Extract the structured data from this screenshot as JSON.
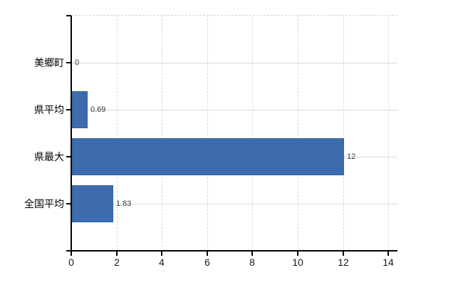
{
  "chart_data": {
    "type": "bar",
    "orientation": "horizontal",
    "title": "",
    "xlabel": "",
    "ylabel": "",
    "legend": null,
    "grid": true,
    "categories": [
      "美郷町",
      "県平均",
      "県最大",
      "全国平均"
    ],
    "values": [
      0,
      0.69,
      12,
      1.83
    ],
    "value_labels": [
      "0",
      "0.69",
      "12",
      "1.83"
    ],
    "x_ticks": [
      0,
      2,
      4,
      6,
      8,
      10,
      12,
      14
    ],
    "x_tick_labels": [
      "0",
      "2",
      "4",
      "6",
      "8",
      "10",
      "12",
      "14"
    ],
    "xlim": [
      0,
      14.4
    ],
    "colors": {
      "bar": "#3c6cae",
      "bar_border": "#35619e",
      "axis": "#000000",
      "vertical_grid": "#d8d8d8",
      "horizontal_grid": "#d9ddd6",
      "value_label": "#3a3a3a",
      "tick_label": "#1a1a1a",
      "category_label": "#000000",
      "background": "#ffffff"
    }
  }
}
